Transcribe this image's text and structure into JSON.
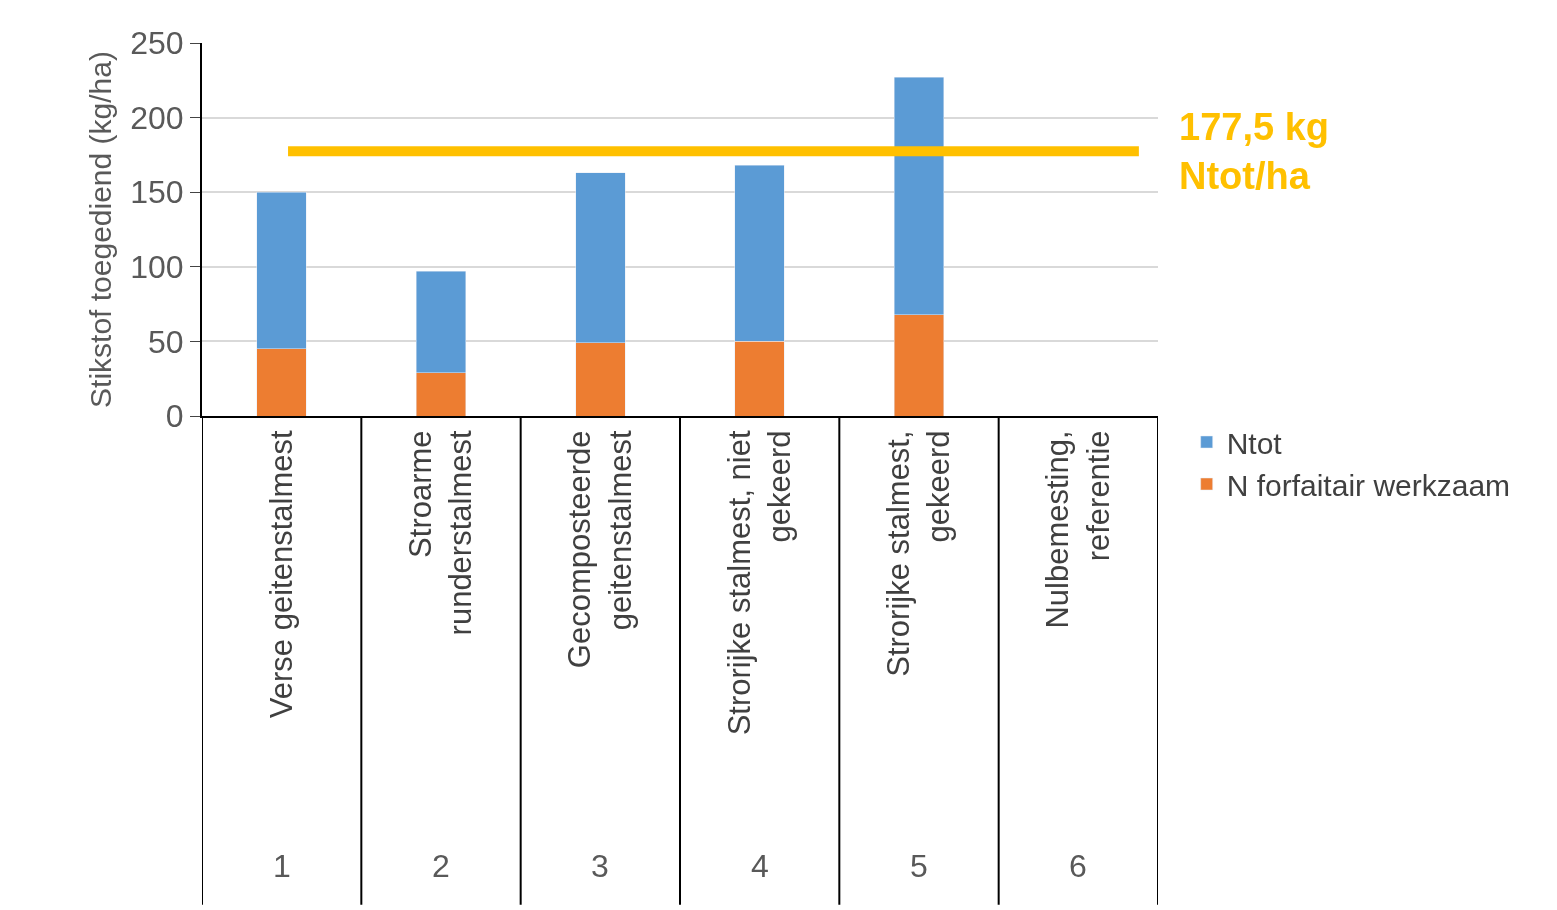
{
  "chart_data": {
    "type": "bar",
    "stacked": true,
    "ylabel": "Stikstof toegediend (kg/ha)",
    "categories": [
      "Verse geitenstalmest",
      "Stroarme\nrunderstalmest",
      "Gecomposteerde\ngeitenstalmest",
      "Strorijke stalmest, niet\ngekeerd",
      "Strorijke stalmest,\ngekeerd",
      "Nulbemesting,\nreferentie"
    ],
    "series": [
      {
        "name": "N forfaitair werkzaam",
        "color": "#ed7d31",
        "values": [
          45,
          29,
          49,
          50,
          68,
          null
        ]
      },
      {
        "name": "Ntot",
        "color": "#5b9bd5",
        "values": [
          105,
          68,
          114,
          118,
          159,
          null
        ]
      }
    ],
    "annotations": [
      "1",
      "2",
      "3",
      "4",
      "5",
      "6"
    ],
    "ref_lines": [
      {
        "axis": "y",
        "value": 177.5,
        "label": "177,5 kg\nNtot/ha",
        "color": "#ffc000"
      }
    ],
    "ylim": [
      0,
      250
    ],
    "yticks": [
      0,
      50,
      100,
      150,
      200,
      250
    ],
    "grid": "y",
    "legend": "right"
  }
}
